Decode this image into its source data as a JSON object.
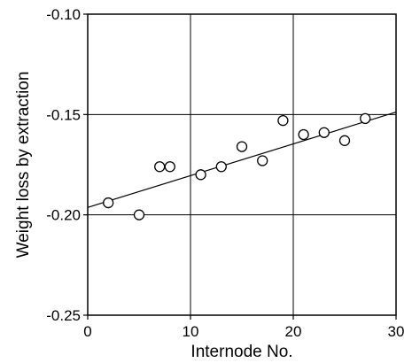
{
  "chart_data": {
    "type": "scatter",
    "title": "",
    "xlabel": "Internode No.",
    "ylabel": "Weight loss by extraction",
    "xlim": [
      0,
      30
    ],
    "ylim": [
      -0.25,
      -0.1
    ],
    "x_ticks": [
      0,
      10,
      20,
      30
    ],
    "x_tick_labels": [
      "0",
      "10",
      "20",
      "30"
    ],
    "y_ticks": [
      -0.25,
      -0.2,
      -0.15,
      -0.1
    ],
    "y_tick_labels": [
      "-0.25",
      "-0.20",
      "-0.15",
      "-0.10"
    ],
    "grid": true,
    "marker": "open-circle",
    "series": [
      {
        "x": [
          2,
          5,
          7,
          8,
          11,
          13,
          15,
          17,
          19,
          21,
          23,
          25,
          27
        ],
        "y": [
          -0.194,
          -0.2,
          -0.176,
          -0.176,
          -0.18,
          -0.176,
          -0.166,
          -0.173,
          -0.153,
          -0.16,
          -0.159,
          -0.163,
          -0.152
        ]
      }
    ],
    "trendline": {
      "type": "linear",
      "x": [
        0,
        30
      ],
      "y": [
        -0.1963,
        -0.1488
      ]
    }
  }
}
